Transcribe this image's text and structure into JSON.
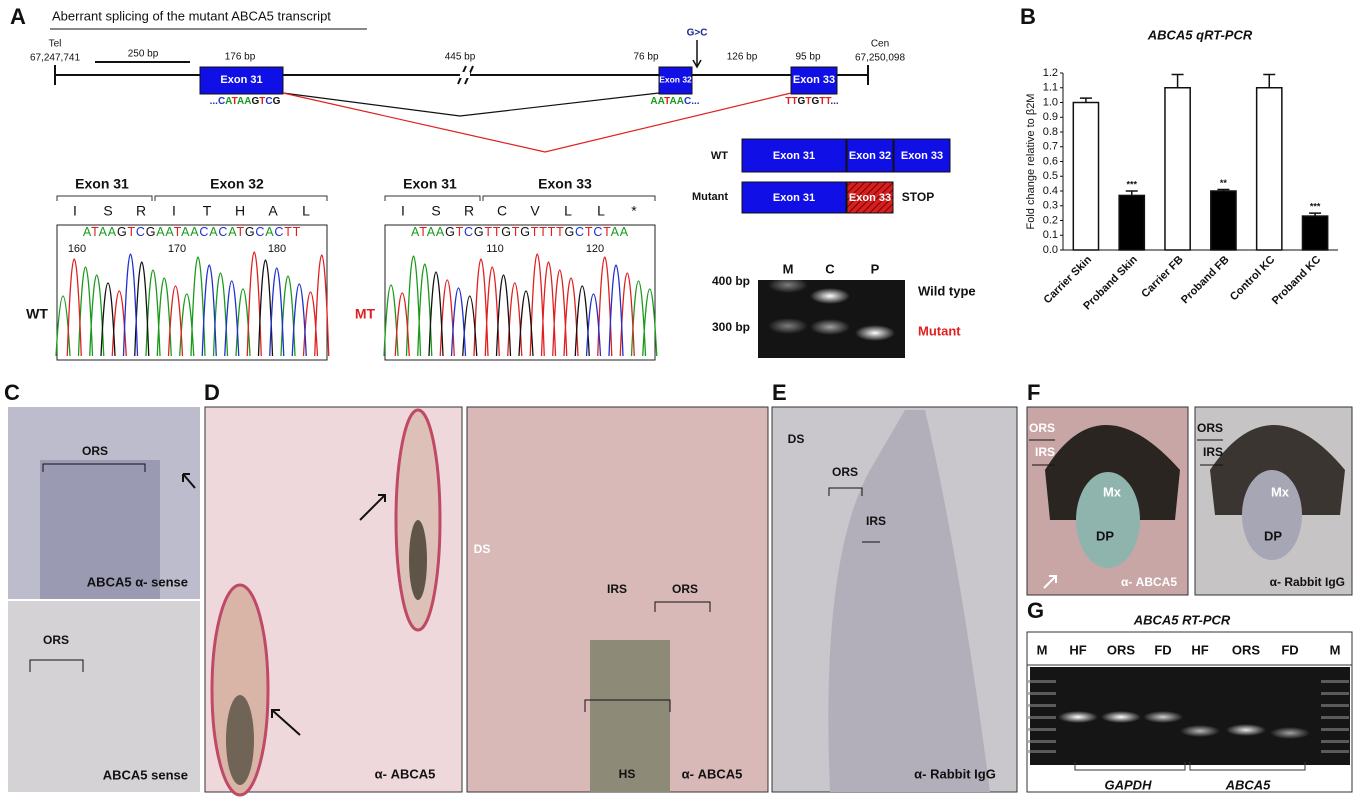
{
  "panel_a": {
    "label": "A",
    "title": "Aberrant splicing of the mutant ABCA5 transcript",
    "tel": "Tel",
    "tel_position": "67,247,741",
    "cen": "Cen",
    "cen_position": "67,250,098",
    "scale": "250 bp",
    "sizes": [
      "176 bp",
      "445 bp",
      "76 bp",
      "126 bp",
      "95 bp"
    ],
    "mutation": "G>C",
    "exons": [
      "Exon 31",
      "Exon 32",
      "Exon 33"
    ],
    "junctions": [
      "...CATAAGTCG",
      "AATAAC...",
      "TTGTGTT..."
    ],
    "splice": {
      "wt_label": "WT",
      "mutant_label": "Mutant",
      "wt_exons": [
        "Exon 31",
        "Exon 32",
        "Exon 33"
      ],
      "mutant_exons": [
        "Exon 31",
        "Exon 33"
      ],
      "stop": "STOP"
    },
    "chromatograms": [
      {
        "label": "WT",
        "exons": [
          "Exon 31",
          "Exon 32"
        ],
        "amino_acids": [
          "I",
          "S",
          "R",
          "I",
          "T",
          "H",
          "A",
          "L"
        ],
        "sequence": "ATAAGTCGAATAACACATGCACTT",
        "positions": [
          160,
          170,
          180
        ]
      },
      {
        "label": "MT",
        "exons": [
          "Exon 31",
          "Exon 33"
        ],
        "amino_acids": [
          "I",
          "S",
          "R",
          "C",
          "V",
          "L",
          "L",
          "*"
        ],
        "sequence": "ATAAGTCGTTGTGTTTTGCTCTAA",
        "positions": [
          110,
          120
        ]
      }
    ],
    "gel": {
      "lanes": [
        "M",
        "C",
        "P"
      ],
      "sizes": [
        "400 bp",
        "300 bp"
      ],
      "bands": [
        "Wild type",
        "Mutant"
      ]
    }
  },
  "chart_data": {
    "type": "bar",
    "panel_label": "B",
    "title": "ABCA5 qRT-PCR",
    "y_label": "Fold change relative to β2M",
    "categories": [
      "Carrier Skin",
      "Proband Skin",
      "Carrier FB",
      "Proband FB",
      "Control KC",
      "Proband KC"
    ],
    "values": [
      1.0,
      0.37,
      1.1,
      0.4,
      1.1,
      0.23
    ],
    "errors": [
      0.03,
      0.03,
      0.09,
      0.01,
      0.09,
      0.02
    ],
    "colors": [
      "#ffffff",
      "#000000",
      "#ffffff",
      "#000000",
      "#ffffff",
      "#000000"
    ],
    "significance": [
      null,
      "***",
      null,
      "**",
      null,
      "***"
    ],
    "ylim": [
      0,
      1.2
    ],
    "yticks": [
      {
        "value": 0,
        "label": "0.0"
      },
      0.1,
      0.2,
      0.3,
      0.4,
      0.5,
      0.6,
      0.7,
      0.8,
      0.9,
      {
        "value": 1,
        "label": "1.0"
      },
      1.1,
      1.2
    ]
  },
  "panel_c": {
    "label": "C",
    "top": {
      "region": "ORS",
      "caption": "ABCA5 α- sense"
    },
    "bottom": {
      "region": "ORS",
      "caption": "ABCA5 sense"
    }
  },
  "panel_d": {
    "label": "D",
    "left": {
      "caption": "α- ABCA5"
    },
    "right": {
      "regions": [
        "DS",
        "IRS",
        "ORS",
        "HS"
      ],
      "caption": "α- ABCA5"
    }
  },
  "panel_e": {
    "label": "E",
    "regions": [
      "DS",
      "ORS",
      "IRS"
    ],
    "caption": "α- Rabbit IgG"
  },
  "panel_f": {
    "label": "F",
    "left": {
      "regions": [
        "ORS",
        "IRS",
        "Mx",
        "DP"
      ],
      "caption": "α- ABCA5"
    },
    "right": {
      "regions": [
        "ORS",
        "IRS",
        "Mx",
        "DP"
      ],
      "caption": "α- Rabbit IgG"
    }
  },
  "panel_g": {
    "label": "G",
    "title": "ABCA5 RT-PCR",
    "lanes": [
      "M",
      "HF",
      "ORS",
      "FD",
      "HF",
      "ORS",
      "FD",
      "M"
    ],
    "genes": [
      "GAPDH",
      "ABCA5"
    ]
  }
}
